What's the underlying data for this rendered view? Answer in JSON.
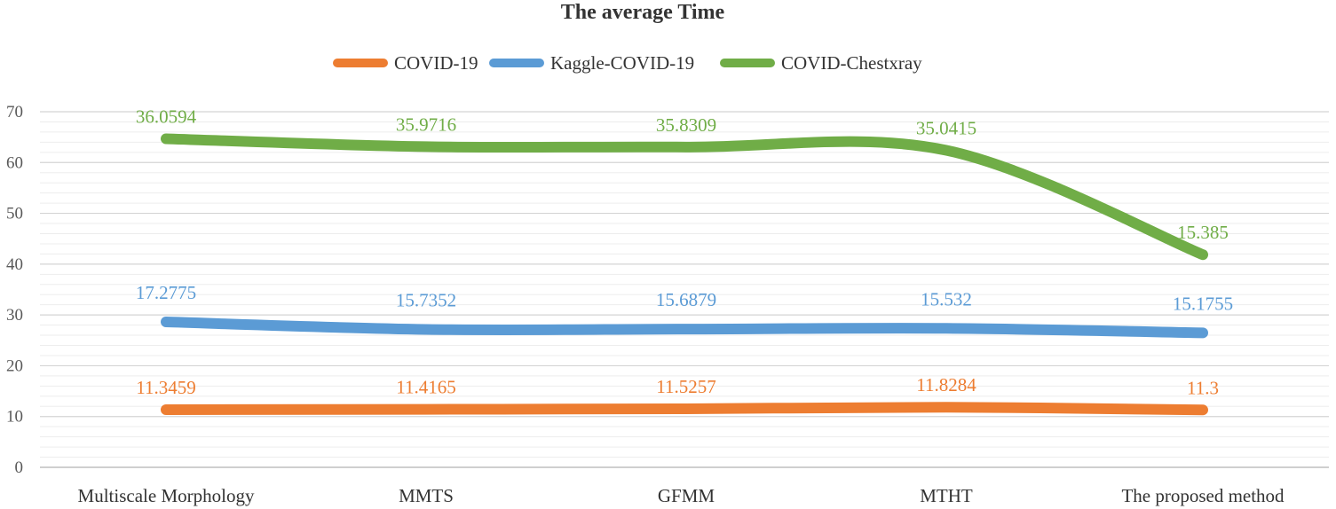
{
  "chart_data": {
    "type": "line",
    "title": "The average Time",
    "xlabel": "",
    "ylabel": "",
    "ylim": [
      0,
      70
    ],
    "y_ticks": [
      0,
      10,
      20,
      30,
      40,
      50,
      60,
      70
    ],
    "minor_gridlines": true,
    "legend_position": "top",
    "smooth": true,
    "categories": [
      "Multiscale Morphology",
      "MMTS",
      "GFMM",
      "MTHT",
      "The proposed method"
    ],
    "series": [
      {
        "name": "COVID-19",
        "color": "#ED7D31",
        "stack_values": [
          11.3459,
          11.4165,
          11.5257,
          11.8284,
          11.3
        ],
        "labels": [
          "11.3459",
          "11.4165",
          "11.5257",
          "11.8284",
          "11.3"
        ]
      },
      {
        "name": "Kaggle-COVID-19",
        "color": "#5B9BD5",
        "stack_values": [
          28.6234,
          27.1517,
          27.2136,
          27.3604,
          26.4755
        ],
        "labels": [
          "17.2775",
          "15.7352",
          "15.6879",
          "15.532",
          "15.1755"
        ]
      },
      {
        "name": "COVID-Chestxray",
        "color": "#70AD47",
        "stack_values": [
          64.6828,
          63.1233,
          63.0445,
          62.4019,
          41.8605
        ],
        "labels": [
          "36.0594",
          "35.9716",
          "35.8309",
          "35.0415",
          "15.385"
        ]
      }
    ]
  }
}
